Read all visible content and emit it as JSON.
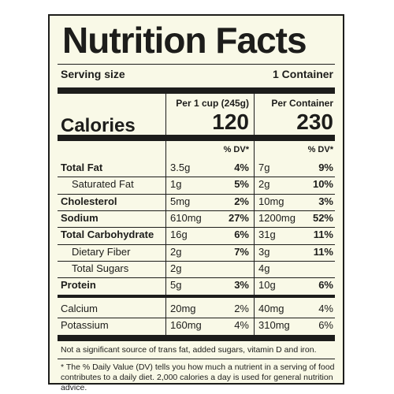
{
  "title": "Nutrition Facts",
  "serving": {
    "label": "Serving size",
    "value": "1 Container"
  },
  "columns": {
    "per_cup": "Per 1 cup (245g)",
    "per_container": "Per Container",
    "dv_header": "% DV*"
  },
  "calories": {
    "label": "Calories",
    "per_cup": "120",
    "per_container": "230"
  },
  "nutrients": [
    {
      "name": "Total Fat",
      "amt1": "3.5g",
      "dv1": "4%",
      "amt2": "7g",
      "dv2": "9%"
    },
    {
      "name": "Saturated Fat",
      "amt1": "1g",
      "dv1": "5%",
      "amt2": "2g",
      "dv2": "10%"
    },
    {
      "name": "Cholesterol",
      "amt1": "5mg",
      "dv1": "2%",
      "amt2": "10mg",
      "dv2": "3%"
    },
    {
      "name": "Sodium",
      "amt1": "610mg",
      "dv1": "27%",
      "amt2": "1200mg",
      "dv2": "52%"
    },
    {
      "name": "Total Carbohydrate",
      "amt1": "16g",
      "dv1": "6%",
      "amt2": "31g",
      "dv2": "11%"
    },
    {
      "name": "Dietary Fiber",
      "amt1": "2g",
      "dv1": "7%",
      "amt2": "3g",
      "dv2": "11%"
    },
    {
      "name": "Total Sugars",
      "amt1": "2g",
      "dv1": "",
      "amt2": "4g",
      "dv2": ""
    },
    {
      "name": "Protein",
      "amt1": "5g",
      "dv1": "3%",
      "amt2": "10g",
      "dv2": "6%"
    }
  ],
  "minerals": [
    {
      "name": "Calcium",
      "amt1": "20mg",
      "dv1": "2%",
      "amt2": "40mg",
      "dv2": "4%"
    },
    {
      "name": "Potassium",
      "amt1": "160mg",
      "dv1": "4%",
      "amt2": "310mg",
      "dv2": "6%"
    }
  ],
  "note": "Not a significant source of trans fat, added sugars, vitamin D and iron.",
  "footnote": "* The % Daily Value (DV) tells you how much a nutrient in a serving of food contributes to a daily diet. 2,000 calories a day is used for general nutrition advice."
}
